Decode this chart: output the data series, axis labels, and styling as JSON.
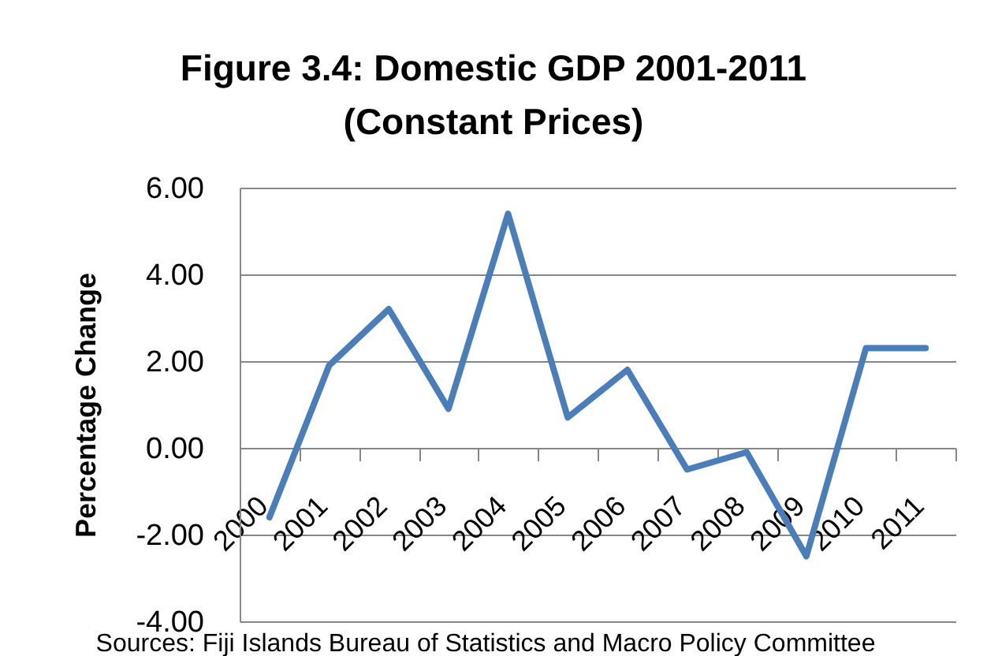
{
  "chart_data": {
    "type": "line",
    "title": "Figure 3.4: Domestic GDP 2001-2011\n(Constant Prices)",
    "ylabel": "Percentage Change",
    "categories": [
      "2000",
      "2001",
      "2002",
      "2003",
      "2004",
      "2005",
      "2006",
      "2007",
      "2008",
      "2009",
      "2010",
      "2011"
    ],
    "series": [
      {
        "color": "#4a7ebb",
        "values": [
          -1.6,
          1.9,
          3.2,
          0.9,
          5.4,
          0.7,
          1.8,
          -0.5,
          -0.1,
          -2.5,
          2.3,
          2.3
        ]
      }
    ],
    "ylim": [
      -4,
      6
    ],
    "yticks": [
      {
        "value": -4,
        "label": "-4.00"
      },
      {
        "value": -2,
        "label": "-2.00"
      },
      {
        "value": 0,
        "label": "0.00"
      },
      {
        "value": 2,
        "label": "2.00"
      },
      {
        "value": 4,
        "label": "4.00"
      },
      {
        "value": 6,
        "label": "6.00"
      }
    ],
    "grid": "y",
    "line_style": "solid",
    "annotations": [
      "Sources: Fiji Islands Bureau of Statistics and Macro Policy Committee"
    ]
  }
}
